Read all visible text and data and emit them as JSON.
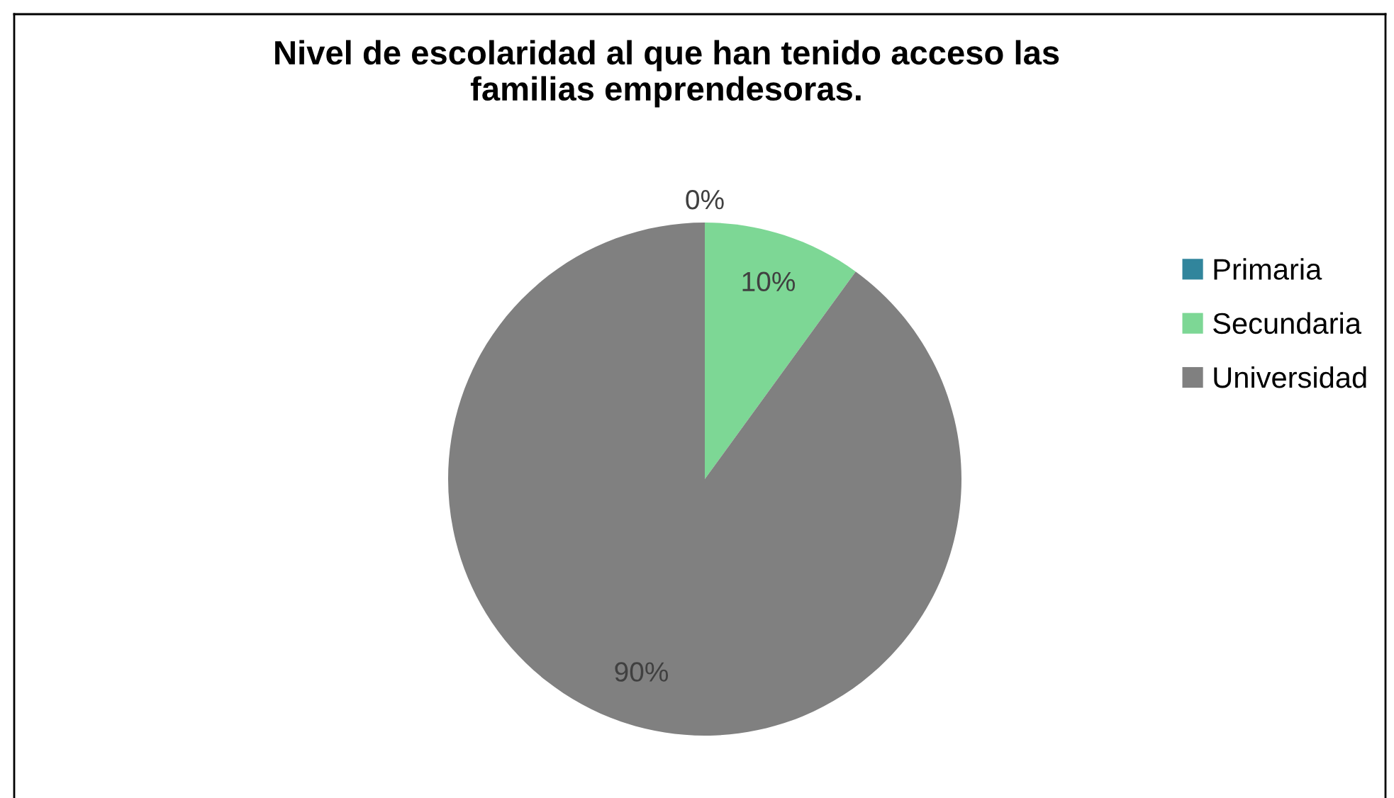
{
  "chart_data": {
    "type": "pie",
    "title": "Nivel de escolaridad al que han tenido acceso las\nfamilias emprendesoras.",
    "categories": [
      "Primaria",
      "Secundaria",
      "Universidad"
    ],
    "values": [
      0,
      10,
      90
    ],
    "colors": [
      "#31859c",
      "#7dd795",
      "#808080"
    ],
    "value_labels": [
      "0%",
      "10%",
      "90%"
    ],
    "legend": "right"
  }
}
